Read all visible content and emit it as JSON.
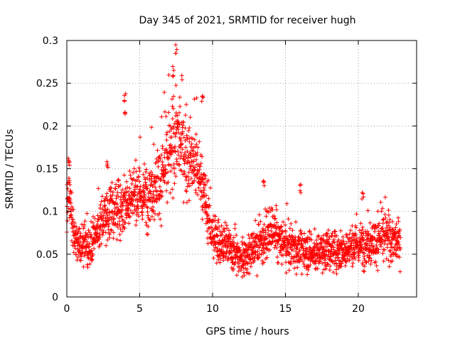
{
  "chart_data": {
    "type": "scatter",
    "title": "Day 345 of 2021, SRMTID for receiver hugh",
    "xlabel": "GPS time / hours",
    "ylabel": "SRMTID / TECUs",
    "xlim": [
      0,
      24
    ],
    "ylim": [
      0,
      0.3
    ],
    "x_ticks": [
      0,
      5,
      10,
      15,
      20
    ],
    "x_tick_labels": [
      "0",
      "5",
      "10",
      "15",
      "20"
    ],
    "y_ticks": [
      0,
      0.05,
      0.1,
      0.15,
      0.2,
      0.25,
      0.3
    ],
    "y_tick_labels": [
      "0",
      "0.05",
      "0.1",
      "0.15",
      "0.2",
      "0.25",
      "0.3"
    ],
    "grid": true,
    "marker": "+",
    "series": [
      {
        "name": "SRMTID",
        "color": "#ff0000",
        "x_range": [
          0.0,
          22.9
        ],
        "sampling_interval_hours": 0.01,
        "trend": [
          {
            "x": 0.0,
            "y": 0.1
          },
          {
            "x": 0.2,
            "y": 0.12
          },
          {
            "x": 0.5,
            "y": 0.07
          },
          {
            "x": 1.0,
            "y": 0.06
          },
          {
            "x": 1.5,
            "y": 0.06
          },
          {
            "x": 2.0,
            "y": 0.075
          },
          {
            "x": 2.5,
            "y": 0.09
          },
          {
            "x": 3.0,
            "y": 0.1
          },
          {
            "x": 3.5,
            "y": 0.105
          },
          {
            "x": 4.0,
            "y": 0.11
          },
          {
            "x": 4.5,
            "y": 0.12
          },
          {
            "x": 5.0,
            "y": 0.115
          },
          {
            "x": 5.5,
            "y": 0.12
          },
          {
            "x": 6.0,
            "y": 0.13
          },
          {
            "x": 6.5,
            "y": 0.14
          },
          {
            "x": 7.0,
            "y": 0.16
          },
          {
            "x": 7.5,
            "y": 0.19
          },
          {
            "x": 8.0,
            "y": 0.17
          },
          {
            "x": 8.5,
            "y": 0.16
          },
          {
            "x": 9.0,
            "y": 0.15
          },
          {
            "x": 9.5,
            "y": 0.11
          },
          {
            "x": 10.0,
            "y": 0.07
          },
          {
            "x": 11.0,
            "y": 0.06
          },
          {
            "x": 12.0,
            "y": 0.045
          },
          {
            "x": 13.0,
            "y": 0.06
          },
          {
            "x": 14.0,
            "y": 0.075
          },
          {
            "x": 15.0,
            "y": 0.06
          },
          {
            "x": 16.0,
            "y": 0.055
          },
          {
            "x": 17.0,
            "y": 0.05
          },
          {
            "x": 18.0,
            "y": 0.055
          },
          {
            "x": 19.0,
            "y": 0.055
          },
          {
            "x": 20.0,
            "y": 0.06
          },
          {
            "x": 21.0,
            "y": 0.065
          },
          {
            "x": 22.0,
            "y": 0.07
          },
          {
            "x": 22.9,
            "y": 0.06
          }
        ],
        "peaks": [
          {
            "x": 0.15,
            "y": 0.16
          },
          {
            "x": 2.8,
            "y": 0.16
          },
          {
            "x": 4.0,
            "y": 0.24
          },
          {
            "x": 4.0,
            "y": 0.22
          },
          {
            "x": 7.5,
            "y": 0.295
          },
          {
            "x": 7.3,
            "y": 0.27
          },
          {
            "x": 9.3,
            "y": 0.24
          },
          {
            "x": 13.5,
            "y": 0.14
          },
          {
            "x": 16.0,
            "y": 0.132
          },
          {
            "x": 20.3,
            "y": 0.125
          }
        ],
        "value_range": [
          0.015,
          0.296
        ]
      }
    ]
  }
}
